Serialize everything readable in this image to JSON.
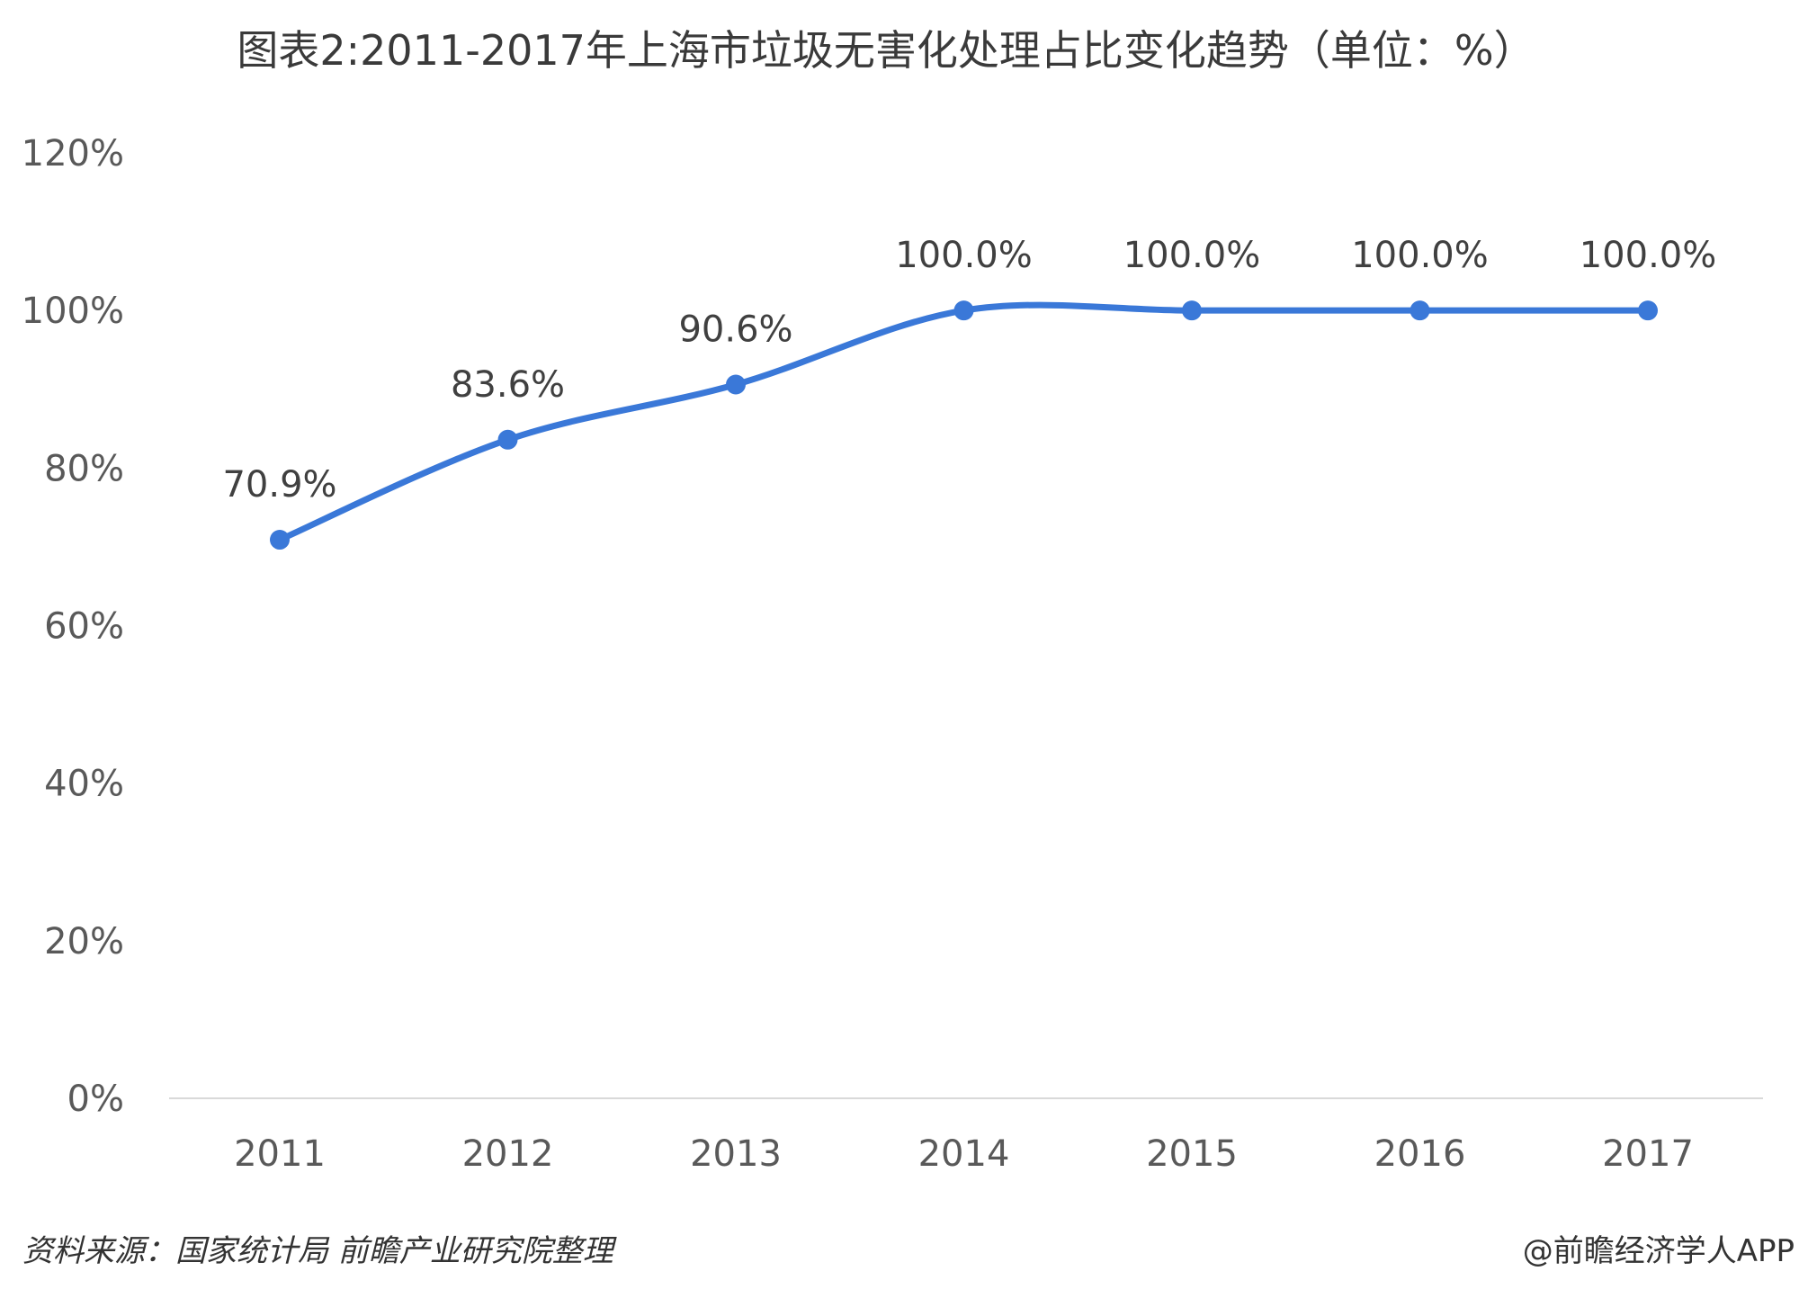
{
  "chart_data": {
    "type": "line",
    "title": "图表2:2011-2017年上海市垃圾无害化处理占比变化趋势（单位：%）",
    "xlabel": "",
    "ylabel": "",
    "categories": [
      "2011",
      "2012",
      "2013",
      "2014",
      "2015",
      "2016",
      "2017"
    ],
    "series": [
      {
        "values": [
          70.9,
          83.6,
          90.6,
          100.0,
          100.0,
          100.0,
          100.0
        ],
        "labels": [
          "70.9%",
          "83.6%",
          "90.6%",
          "100.0%",
          "100.0%",
          "100.0%",
          "100.0%"
        ],
        "color": "#3a78d8"
      }
    ],
    "ylim": [
      0,
      120
    ],
    "yticks": [
      0,
      20,
      40,
      60,
      80,
      100,
      120
    ],
    "ytick_labels": [
      "0%",
      "20%",
      "40%",
      "60%",
      "80%",
      "100%",
      "120%"
    ],
    "grid": false,
    "smooth": true,
    "axis_color": "#d9d9d9"
  },
  "footer": {
    "source": "资料来源：国家统计局 前瞻产业研究院整理",
    "credit": "@前瞻经济学人APP"
  }
}
